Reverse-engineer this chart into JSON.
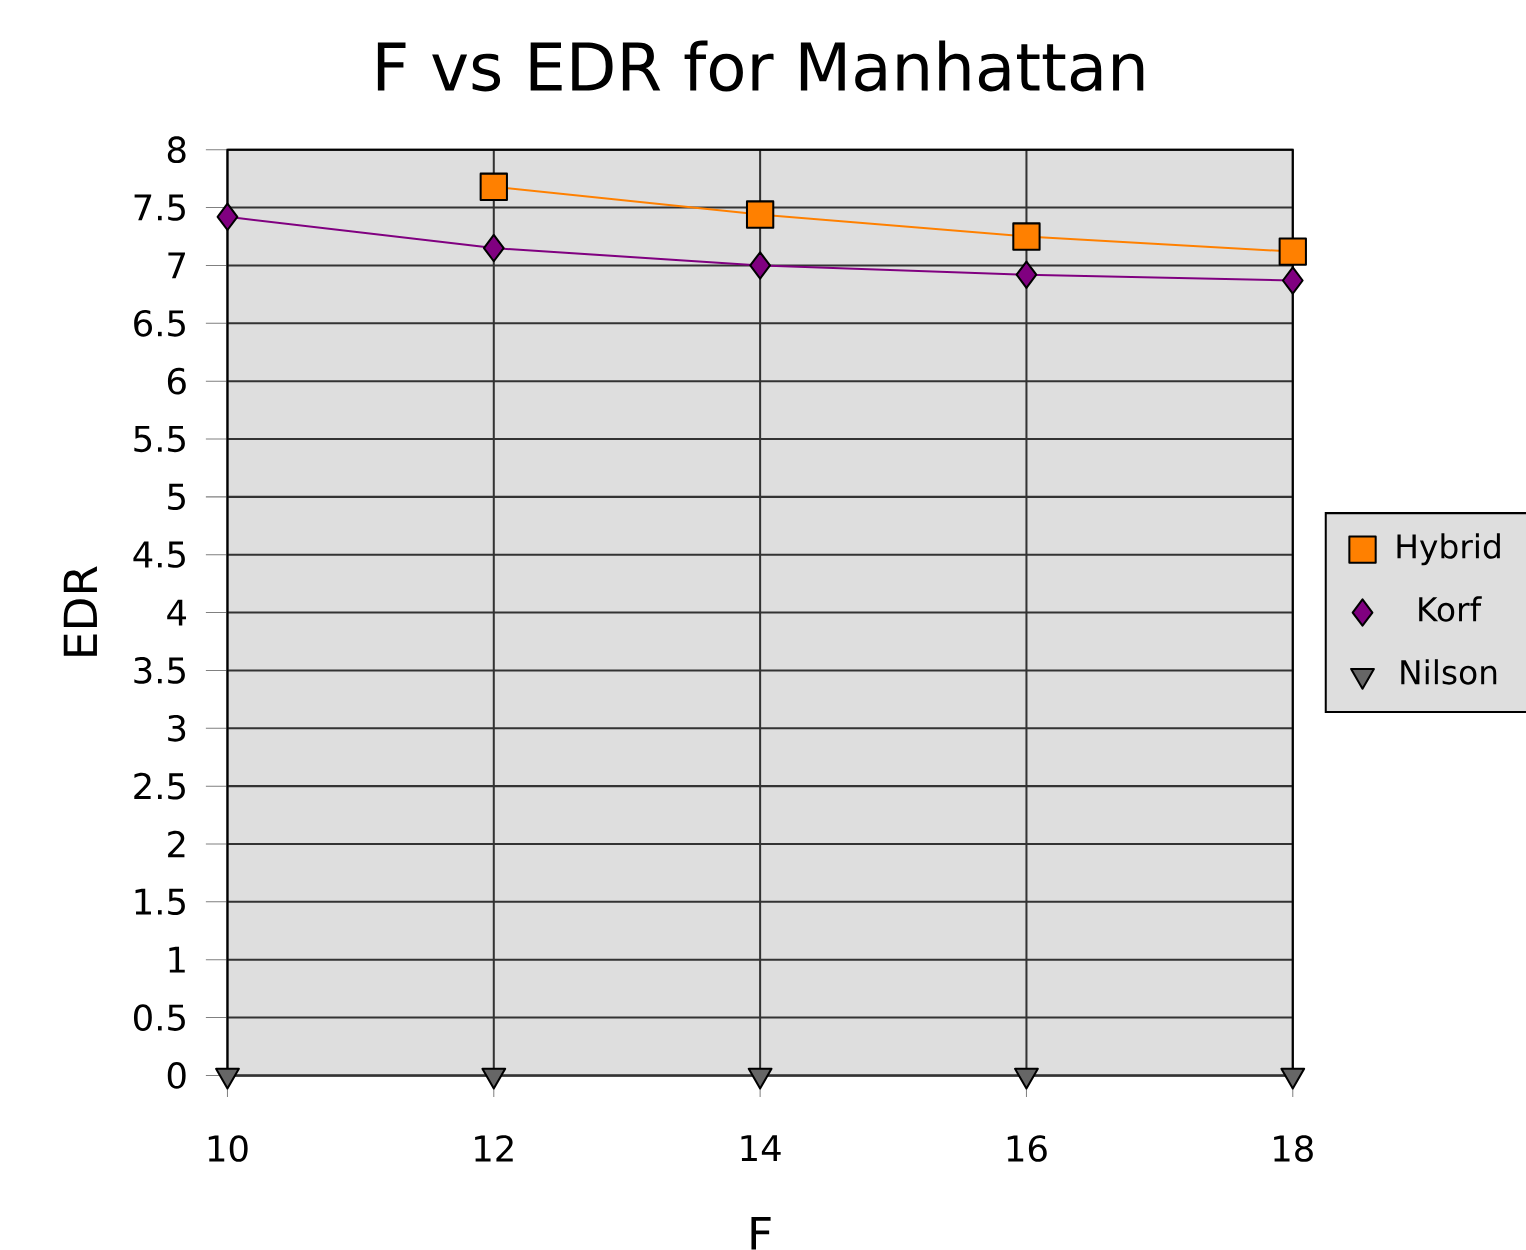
{
  "chart_data": {
    "type": "line",
    "title": "F vs EDR for Manhattan",
    "xlabel": "F",
    "ylabel": "EDR",
    "x": [
      10,
      12,
      14,
      16,
      18
    ],
    "series": [
      {
        "name": "Hybrid",
        "color": "#ff8000",
        "marker": "square",
        "values": [
          null,
          7.68,
          7.44,
          7.25,
          7.12
        ]
      },
      {
        "name": "Korf",
        "color": "#800080",
        "marker": "diamond",
        "values": [
          7.42,
          7.15,
          7.0,
          6.92,
          6.87
        ]
      },
      {
        "name": "Nilson",
        "color": "#666666",
        "marker": "triangle",
        "values": [
          0,
          0,
          0,
          0,
          0
        ]
      }
    ],
    "xlim": [
      10,
      18
    ],
    "xticks": [
      10,
      12,
      14,
      16,
      18
    ],
    "ylim": [
      0,
      8
    ],
    "yticks": [
      0,
      0.5,
      1,
      1.5,
      2,
      2.5,
      3,
      3.5,
      4,
      4.5,
      5,
      5.5,
      6,
      6.5,
      7,
      7.5,
      8
    ],
    "grid": true,
    "legend": "right"
  }
}
